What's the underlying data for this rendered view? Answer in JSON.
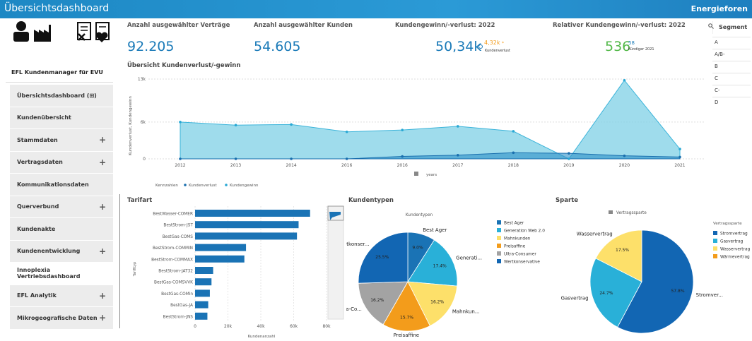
{
  "app": {
    "title": "Übersichtsdashboard",
    "logo": "Energieforen"
  },
  "sidebar": {
    "brand": "EFL Kundenmanager für EVU",
    "items": [
      {
        "label": "Übersichtsdashboard (⊞)",
        "plus": false,
        "white": false
      },
      {
        "label": "Kundenübersicht",
        "plus": false,
        "white": false
      },
      {
        "label": "Stammdaten",
        "plus": true,
        "white": false
      },
      {
        "label": "Vertragsdaten",
        "plus": true,
        "white": false
      },
      {
        "label": "Kommunikationsdaten",
        "plus": false,
        "white": false
      },
      {
        "label": "Querverbund",
        "plus": true,
        "white": false
      },
      {
        "label": "Kundenakte",
        "plus": false,
        "white": false
      },
      {
        "label": "Kundenentwicklung",
        "plus": true,
        "white": false
      },
      {
        "label": "Innoplexia Vertriebsdashboard",
        "plus": false,
        "white": true
      },
      {
        "label": "EFL Analytik",
        "plus": true,
        "white": false
      },
      {
        "label": "Mikrogeografische Daten",
        "plus": true,
        "white": false
      }
    ]
  },
  "kpis": {
    "contracts": {
      "title": "Anzahl ausgewählter Verträge",
      "value": "92.205"
    },
    "customers": {
      "title": "Anzahl ausgewählter Kunden",
      "value": "54.605"
    },
    "gain": {
      "title": "Kundengewinn/-verlust: 2022",
      "value": "50,34k",
      "sub_value": "4,32k",
      "sub_star": "*",
      "sub_label": "Kundenverlust"
    },
    "relative": {
      "title": "Relativer Kundengewinn/-verlust: 2022",
      "value": "536",
      "sup": "58",
      "sub_label": "Kündiger 2021"
    }
  },
  "segment": {
    "title": "Segment",
    "items": [
      "A",
      "A/B-",
      "B",
      "C",
      "C-",
      "D"
    ]
  },
  "colors": {
    "blue": "#1a73b5",
    "cyan": "#29b0d8",
    "yellow": "#fde06a",
    "orange": "#f39c1b",
    "grey": "#a3a3a3",
    "darkblue": "#1266b3",
    "green": "#52b848",
    "area": "#7fd0e6"
  },
  "chart_data": [
    {
      "type": "area",
      "title": "Übersicht Kundenverlust/-gewinn",
      "xlabel": "years",
      "ylabel": "Kundenverlust, Kundengewinn",
      "legend_title": "Kennzahlen",
      "x": [
        "2012",
        "2013",
        "2014",
        "2016",
        "2016",
        "2017",
        "2018",
        "2019",
        "2020",
        "2021"
      ],
      "y_ticks": [
        "0",
        "6k",
        "13k"
      ],
      "ylim": [
        0,
        13000
      ],
      "series": [
        {
          "name": "Kundenverlust",
          "values": [
            0,
            0,
            0,
            0,
            400,
            600,
            1000,
            900,
            500,
            300
          ]
        },
        {
          "name": "Kundengewinn",
          "values": [
            6000,
            5500,
            5600,
            4400,
            4700,
            5300,
            4500,
            0,
            12800,
            1600
          ]
        }
      ]
    },
    {
      "type": "bar",
      "title": "Tarifart",
      "xlabel": "Kundenanzahl",
      "ylabel": "Tarifttyp",
      "categories": [
        "BestWasser-COMER",
        "BestStrom-JST",
        "BestGas-COMS",
        "BestStrom-COMMIN",
        "BestStrom-COMMAX",
        "BestStrom-JAT32",
        "BestGas-COMSVVK",
        "BestGas-COMin",
        "BestGas-JA",
        "BestStrom-JNS"
      ],
      "values": [
        70000,
        63000,
        62000,
        31000,
        30000,
        11000,
        10000,
        9000,
        8000,
        7500
      ],
      "x_ticks": [
        "0",
        "20k",
        "40k",
        "60k",
        "80k"
      ],
      "xlim": [
        0,
        80000
      ]
    },
    {
      "type": "pie",
      "title": "Kundentypen",
      "subtitle": "Kundentypen",
      "slices": [
        {
          "name": "Best Ager",
          "label": "Best Ager",
          "value": 9.0
        },
        {
          "name": "Generation Web 2.0",
          "label": "Generati...",
          "value": 17.4
        },
        {
          "name": "Mahnkunden",
          "label": "Mahnkun...",
          "value": 16.2
        },
        {
          "name": "Preisaffine",
          "label": "Preisaffine",
          "value": 15.7
        },
        {
          "name": "Ultra-Consumer",
          "label": "Ultra-Co...",
          "value": 16.2
        },
        {
          "name": "Wertkonservative",
          "label": "Wertkonser...",
          "value": 25.5
        }
      ],
      "value_labels": [
        "9.0%",
        "17.4%",
        "16.2%",
        "15.7%",
        "16.2%",
        "25.5%"
      ]
    },
    {
      "type": "pie",
      "title": "Sparte",
      "subtitle": "Vertragssparte",
      "legend_title": "Vertragssparte",
      "slices": [
        {
          "name": "Stromvertrag",
          "label": "Stromver...",
          "value": 57.8
        },
        {
          "name": "Gasvertrag",
          "label": "Gasvertrag",
          "value": 24.7
        },
        {
          "name": "Wasservertrag",
          "label": "Wasservertrag",
          "value": 17.5
        },
        {
          "name": "Wärmevertrag",
          "label": "Wärmevertrag",
          "value": 0.0
        }
      ],
      "value_labels": [
        "57.8%",
        "24.7%",
        "17.5%",
        ""
      ]
    }
  ]
}
